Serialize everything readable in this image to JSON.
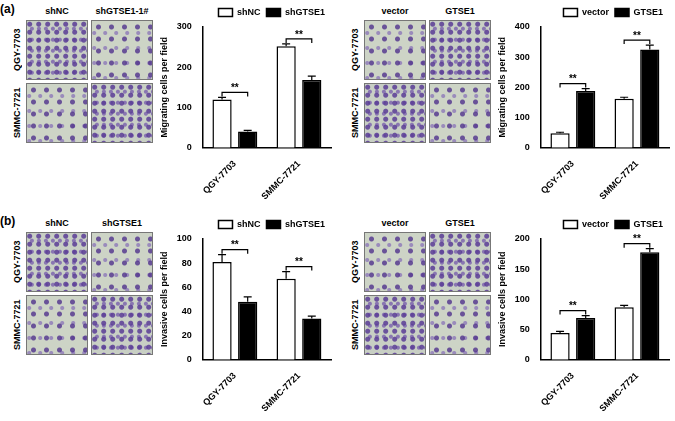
{
  "panel_labels": [
    "(a)",
    "(b)"
  ],
  "images": [
    {
      "columns": [
        "shNC",
        "shGTSE1-1#"
      ],
      "rows": [
        "QGY-7703",
        "SMMC-7721"
      ]
    },
    {
      "columns": [
        "vector",
        "GTSE1"
      ],
      "rows": [
        "QGY-7703",
        "SMMC-7721"
      ]
    },
    {
      "columns": [
        "shNC",
        "shGTSE1"
      ],
      "rows": [
        "QGY-7703",
        "SMMC-7721"
      ]
    },
    {
      "columns": [
        "vector",
        "GTSE1"
      ],
      "rows": [
        "QGY-7703",
        "SMMC-7721"
      ]
    }
  ],
  "chart_data": [
    {
      "type": "bar",
      "y_label": "Migrating cells per field",
      "categories": [
        "QGY-7703",
        "SMMC-7721"
      ],
      "series": [
        {
          "name": "shNC",
          "color": "#ffffff",
          "values": [
            120,
            252
          ],
          "errors": [
            5,
            6
          ]
        },
        {
          "name": "shGTSE1",
          "color": "#000000",
          "values": [
            40,
            168
          ],
          "errors": [
            3,
            10
          ]
        }
      ],
      "ylim": [
        0,
        300
      ],
      "yticks": [
        0,
        100,
        200,
        300
      ],
      "grid": false,
      "legend": "top",
      "annotations": [
        {
          "category": "QGY-7703",
          "text": "**"
        },
        {
          "category": "SMMC-7721",
          "text": "**"
        }
      ]
    },
    {
      "type": "bar",
      "y_label": "Migrating cells per field",
      "categories": [
        "QGY-7703",
        "SMMC-7721"
      ],
      "series": [
        {
          "name": "vector",
          "color": "#ffffff",
          "values": [
            48,
            162
          ],
          "errors": [
            3,
            5
          ]
        },
        {
          "name": "GTSE1",
          "color": "#000000",
          "values": [
            188,
            325
          ],
          "errors": [
            8,
            15
          ]
        }
      ],
      "ylim": [
        0,
        400
      ],
      "yticks": [
        0,
        100,
        200,
        300,
        400
      ],
      "grid": false,
      "legend": "top",
      "annotations": [
        {
          "category": "QGY-7703",
          "text": "**"
        },
        {
          "category": "SMMC-7721",
          "text": "**"
        }
      ]
    },
    {
      "type": "bar",
      "y_label": "Invasive cells per field",
      "categories": [
        "QGY-7703",
        "SMMC-7721"
      ],
      "series": [
        {
          "name": "shNC",
          "color": "#ffffff",
          "values": [
            81,
            67
          ],
          "errors": [
            6,
            6
          ]
        },
        {
          "name": "shGTSE1",
          "color": "#000000",
          "values": [
            48,
            34
          ],
          "errors": [
            4,
            2
          ]
        }
      ],
      "ylim": [
        0,
        100
      ],
      "yticks": [
        0,
        20,
        40,
        60,
        80,
        100
      ],
      "grid": false,
      "legend": "top",
      "annotations": [
        {
          "category": "QGY-7703",
          "text": "**"
        },
        {
          "category": "SMMC-7721",
          "text": "**"
        }
      ]
    },
    {
      "type": "bar",
      "y_label": "Invasive cells per field",
      "categories": [
        "QGY-7703",
        "SMMC-7721"
      ],
      "series": [
        {
          "name": "vector",
          "color": "#ffffff",
          "values": [
            44,
            87
          ],
          "errors": [
            3,
            3
          ]
        },
        {
          "name": "GTSE1",
          "color": "#000000",
          "values": [
            69,
            178
          ],
          "errors": [
            4,
            6
          ]
        }
      ],
      "ylim": [
        0,
        200
      ],
      "yticks": [
        0,
        50,
        100,
        150,
        200
      ],
      "grid": false,
      "legend": "top",
      "annotations": [
        {
          "category": "QGY-7703",
          "text": "**"
        },
        {
          "category": "SMMC-7721",
          "text": "**"
        }
      ]
    }
  ]
}
